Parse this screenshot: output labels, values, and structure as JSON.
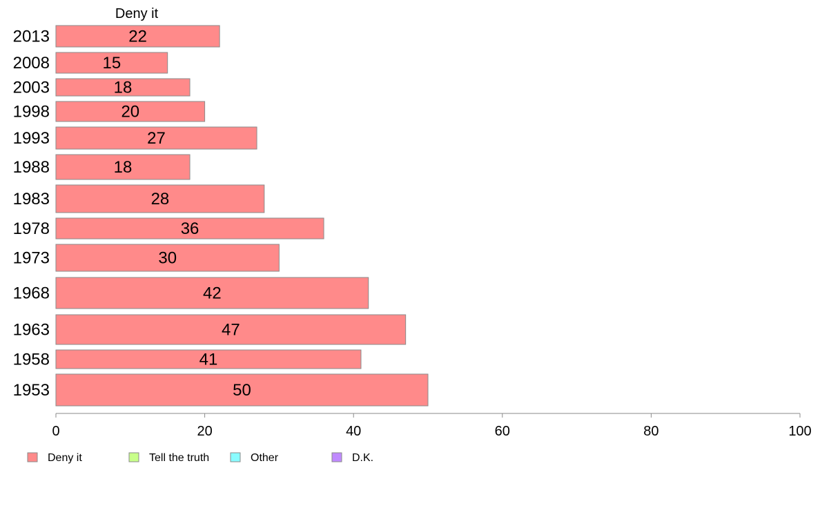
{
  "chart_data": {
    "type": "bar",
    "orientation": "horizontal",
    "title": "Deny it",
    "categories": [
      "2013",
      "2008",
      "2003",
      "1998",
      "1993",
      "1988",
      "1983",
      "1978",
      "1973",
      "1968",
      "1963",
      "1958",
      "1953"
    ],
    "series": [
      {
        "name": "Deny it",
        "color": "#ff8a8a",
        "values": [
          22,
          15,
          18,
          20,
          27,
          18,
          28,
          36,
          30,
          42,
          47,
          41,
          50
        ],
        "labels": [
          "22",
          "15",
          "18",
          "20",
          "27",
          "18",
          "28",
          "36",
          "30",
          "42",
          "47",
          "41",
          "50"
        ]
      }
    ],
    "xlim": [
      0,
      100
    ],
    "xticks": [
      0,
      20,
      40,
      60,
      80,
      100
    ],
    "xtick_labels": [
      "0",
      "20",
      "40",
      "60",
      "80",
      "100"
    ],
    "grid": false,
    "legend": {
      "placement": "bottom-left",
      "entries": [
        {
          "label": "Deny it",
          "color": "#ff8a8a"
        },
        {
          "label": "Tell the truth",
          "color": "#c8ff8a"
        },
        {
          "label": "Other",
          "color": "#8afcff"
        },
        {
          "label": "D.K.",
          "color": "#c08aff"
        }
      ]
    }
  }
}
